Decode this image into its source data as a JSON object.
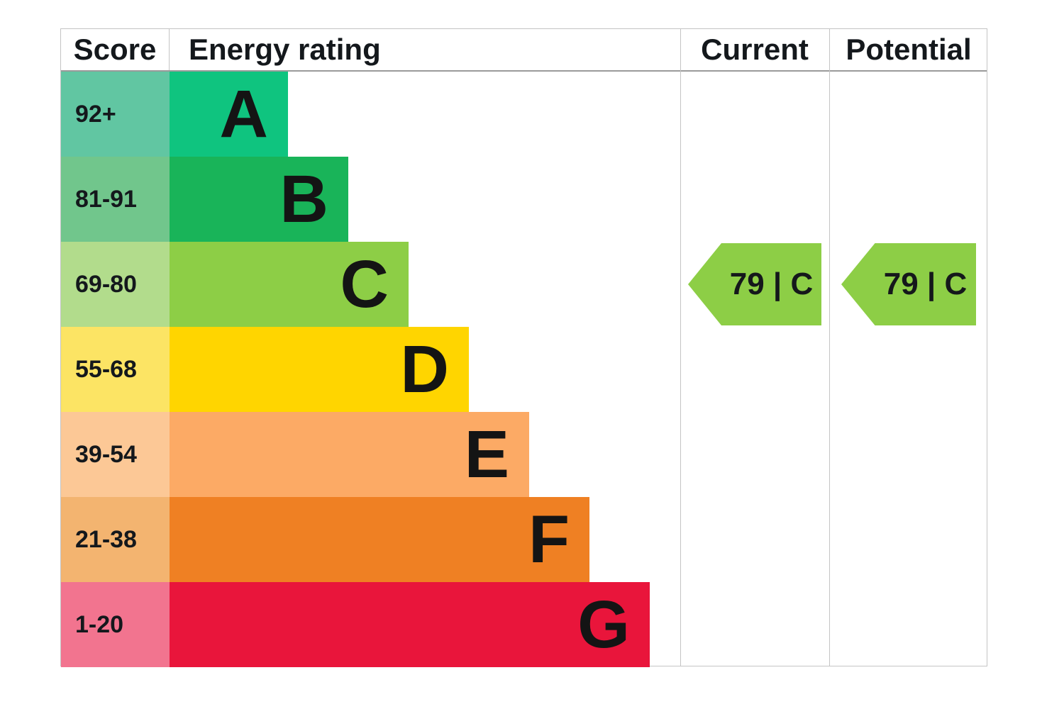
{
  "header": {
    "score": "Score",
    "energy_rating": "Energy rating",
    "current": "Current",
    "potential": "Potential"
  },
  "bands": [
    {
      "score_range": "92+",
      "letter": "A",
      "bar_color": "#0fc47f",
      "score_cell_color": "#61c6a2"
    },
    {
      "score_range": "81-91",
      "letter": "B",
      "bar_color": "#19b459",
      "score_cell_color": "#71c68c"
    },
    {
      "score_range": "69-80",
      "letter": "C",
      "bar_color": "#8dce46",
      "score_cell_color": "#b2dc8c"
    },
    {
      "score_range": "55-68",
      "letter": "D",
      "bar_color": "#ffd500",
      "score_cell_color": "#fce464"
    },
    {
      "score_range": "39-54",
      "letter": "E",
      "bar_color": "#fcaa65",
      "score_cell_color": "#fcc896"
    },
    {
      "score_range": "21-38",
      "letter": "F",
      "bar_color": "#ef8023",
      "score_cell_color": "#f3b470"
    },
    {
      "score_range": "1-20",
      "letter": "G",
      "bar_color": "#e9153b",
      "score_cell_color": "#f2748f"
    }
  ],
  "current": {
    "label": "79 | C",
    "value": 79,
    "band": "C",
    "arrow_color": "#8dce46"
  },
  "potential": {
    "label": "79 | C",
    "value": 79,
    "band": "C",
    "arrow_color": "#8dce46"
  },
  "chart_data": {
    "type": "bar",
    "categories": [
      "A",
      "B",
      "C",
      "D",
      "E",
      "F",
      "G"
    ],
    "score_ranges": [
      "92+",
      "81-91",
      "69-80",
      "55-68",
      "39-54",
      "21-38",
      "1-20"
    ],
    "bar_relative_lengths": [
      1,
      2,
      3,
      4,
      5,
      6,
      7
    ],
    "band_colors": [
      "#0fc47f",
      "#19b459",
      "#8dce46",
      "#ffd500",
      "#fcaa65",
      "#ef8023",
      "#e9153b"
    ],
    "score_cell_colors": [
      "#61c6a2",
      "#71c68c",
      "#b2dc8c",
      "#fce464",
      "#fcc896",
      "#f3b470",
      "#f2748f"
    ],
    "column_headers": [
      "Score",
      "Energy rating",
      "Current",
      "Potential"
    ],
    "current_rating": {
      "value": 79,
      "band": "C",
      "label": "79 | C"
    },
    "potential_rating": {
      "value": 79,
      "band": "C",
      "label": "79 | C"
    },
    "grid": false,
    "legend_position": "none"
  }
}
